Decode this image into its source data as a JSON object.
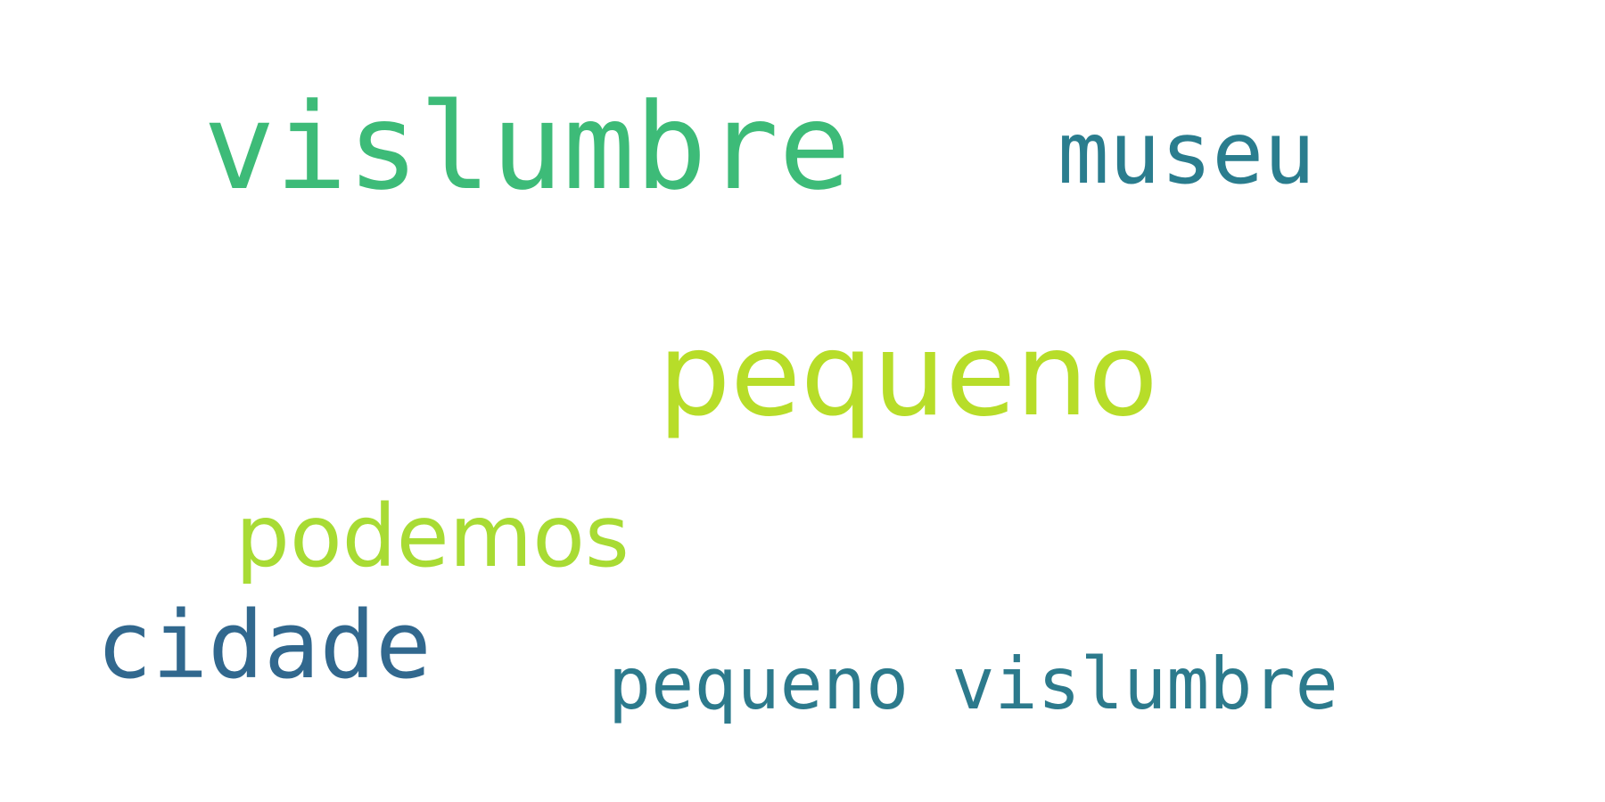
{
  "word_cloud": {
    "words": [
      {
        "text": "vislumbre",
        "color": "#3dbb78"
      },
      {
        "text": "museu",
        "color": "#2a7d8e"
      },
      {
        "text": "pequeno",
        "color": "#b7dd29"
      },
      {
        "text": "podemos",
        "color": "#a8db34"
      },
      {
        "text": "cidade",
        "color": "#31688e"
      },
      {
        "text": "pequeno vislumbre",
        "color": "#2c7a8c"
      }
    ]
  }
}
